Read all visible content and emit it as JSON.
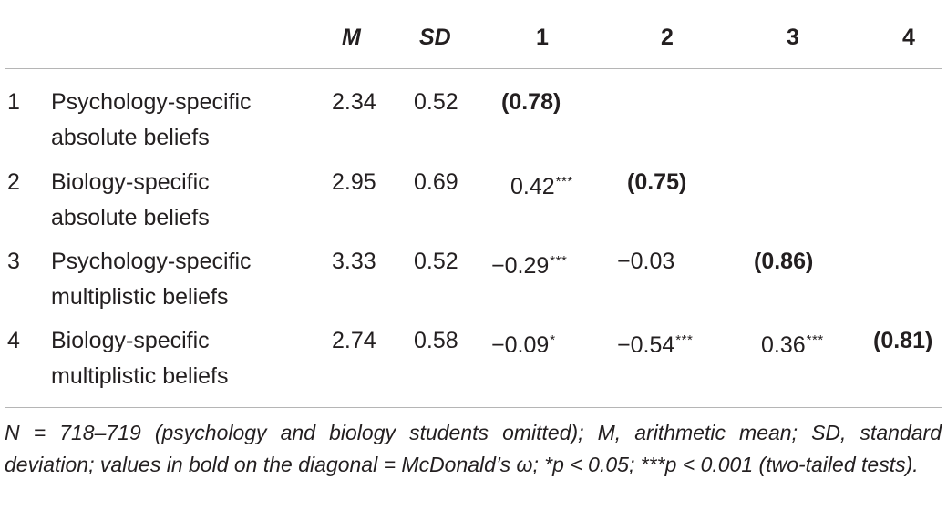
{
  "header": {
    "blank": "",
    "m": "M",
    "sd": "SD",
    "c1": "1",
    "c2": "2",
    "c3": "3",
    "c4": "4"
  },
  "rows": [
    {
      "num": "1",
      "label_line1": "Psychology-specific",
      "label_line2": "absolute beliefs",
      "m": "2.34",
      "sd": "0.52",
      "cells": [
        {
          "v": "(0.78)",
          "sig": ""
        }
      ]
    },
    {
      "num": "2",
      "label_line1": "Biology-specific",
      "label_line2": "absolute beliefs",
      "m": "2.95",
      "sd": "0.69",
      "cells": [
        {
          "v": "0.42",
          "sig": "***"
        },
        {
          "v": "(0.75)",
          "sig": ""
        }
      ]
    },
    {
      "num": "3",
      "label_line1": "Psychology-specific",
      "label_line2": "multiplistic beliefs",
      "m": "3.33",
      "sd": "0.52",
      "cells": [
        {
          "v": "−0.29",
          "sig": "***"
        },
        {
          "v": "−0.03",
          "sig": ""
        },
        {
          "v": "(0.86)",
          "sig": ""
        }
      ]
    },
    {
      "num": "4",
      "label_line1": "Biology-specific",
      "label_line2": "multiplistic beliefs",
      "m": "2.74",
      "sd": "0.58",
      "cells": [
        {
          "v": "−0.09",
          "sig": "*"
        },
        {
          "v": "−0.54",
          "sig": "***"
        },
        {
          "v": "0.36",
          "sig": "***"
        },
        {
          "v": "(0.81)",
          "sig": ""
        }
      ]
    }
  ],
  "note": "N = 718–719 (psychology and biology students omitted); M, arithmetic mean; SD, standard deviation; values in bold on the diagonal = McDonald’s ω; *p < 0.05; ***p < 0.001 (two-tailed tests)."
}
